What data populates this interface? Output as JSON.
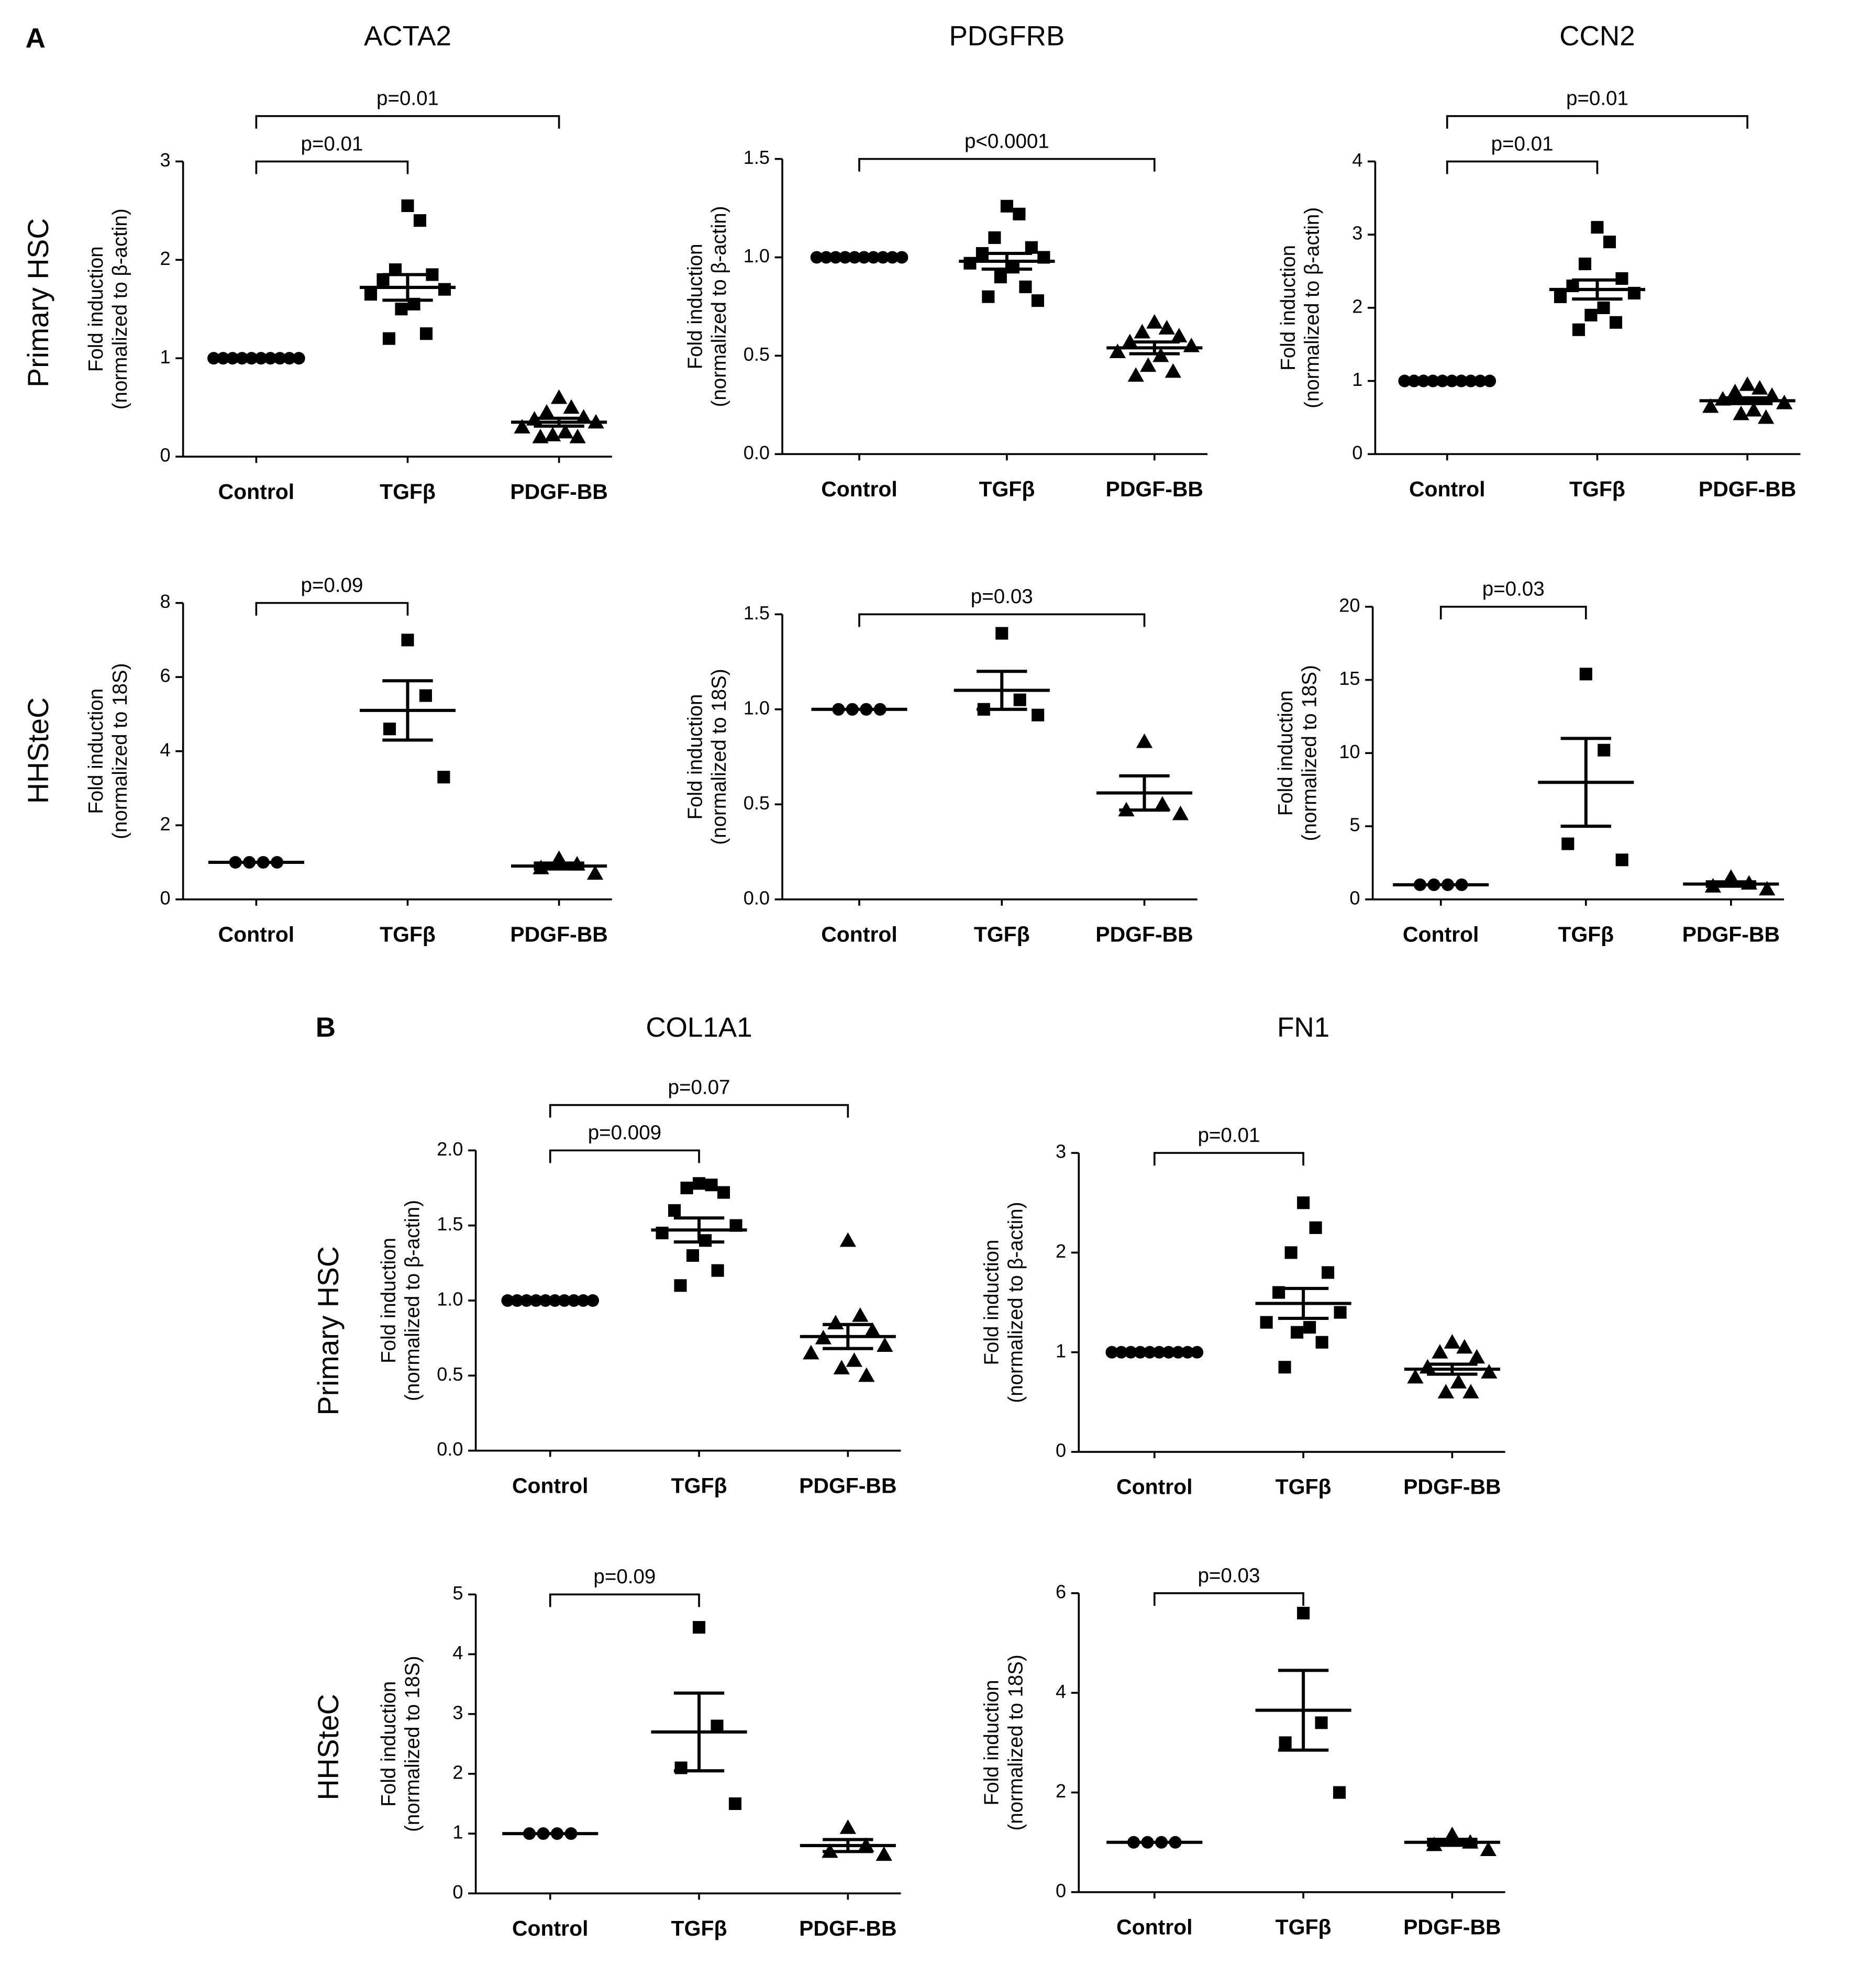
{
  "panels": [
    {
      "label": "A",
      "row_labels": [
        "Primary HSC",
        "HHSteC"
      ]
    },
    {
      "label": "B",
      "row_labels": [
        "Primary HSC",
        "HHSteC"
      ]
    }
  ],
  "chart_data": [
    {
      "type": "dotplot",
      "title": "ACTA2",
      "ylabel": [
        "Fold induction",
        "(normalized to β-actin)"
      ],
      "categories": [
        "Control",
        "TGFβ",
        "PDGF-BB"
      ],
      "markers": [
        "circle",
        "square",
        "triangle"
      ],
      "color": "#000000",
      "values": [
        [
          1,
          1,
          1,
          1,
          1,
          1,
          1,
          1,
          1,
          1
        ],
        [
          2.55,
          2.4,
          1.9,
          1.85,
          1.8,
          1.7,
          1.65,
          1.55,
          1.5,
          1.25,
          1.2
        ],
        [
          0.6,
          0.5,
          0.45,
          0.4,
          0.38,
          0.35,
          0.3,
          0.25,
          0.22,
          0.2,
          0.2
        ]
      ],
      "means": [
        1,
        1.72,
        0.35
      ],
      "sems": [
        0,
        0.13,
        0.04
      ],
      "ylim": [
        0,
        3
      ],
      "yticks": [
        0,
        1,
        2,
        3
      ],
      "brackets": [
        {
          "from": 0,
          "to": 1,
          "label": "p=0.01"
        },
        {
          "from": 0,
          "to": 2,
          "label": "p=0.01"
        }
      ]
    },
    {
      "type": "dotplot",
      "title": "PDGFRB",
      "ylabel": [
        "Fold induction",
        "(normalized to β-actin)"
      ],
      "categories": [
        "Control",
        "TGFβ",
        "PDGF-BB"
      ],
      "markers": [
        "circle",
        "square",
        "triangle"
      ],
      "color": "#000000",
      "values": [
        [
          1,
          1,
          1,
          1,
          1,
          1,
          1,
          1,
          1,
          1
        ],
        [
          1.26,
          1.22,
          1.1,
          1.05,
          1.02,
          1.0,
          0.97,
          0.95,
          0.9,
          0.85,
          0.8,
          0.78
        ],
        [
          0.67,
          0.64,
          0.62,
          0.6,
          0.57,
          0.55,
          0.52,
          0.5,
          0.45,
          0.42,
          0.4
        ]
      ],
      "means": [
        1,
        0.98,
        0.54
      ],
      "sems": [
        0,
        0.04,
        0.03
      ],
      "ylim": [
        0,
        1.5
      ],
      "yticks": [
        {
          "value": 0,
          "label": "0.0"
        },
        {
          "value": 0.5,
          "label": "0.5"
        },
        {
          "value": 1,
          "label": "1.0"
        },
        1.5
      ],
      "brackets": [
        {
          "from": 0,
          "to": 2,
          "label": "p<0.0001"
        }
      ]
    },
    {
      "type": "dotplot",
      "title": "CCN2",
      "ylabel": [
        "Fold induction",
        "(normalized to β-actin)"
      ],
      "categories": [
        "Control",
        "TGFβ",
        "PDGF-BB"
      ],
      "markers": [
        "circle",
        "square",
        "triangle"
      ],
      "color": "#000000",
      "values": [
        [
          1,
          1,
          1,
          1,
          1,
          1,
          1,
          1,
          1,
          1
        ],
        [
          3.1,
          2.9,
          2.6,
          2.4,
          2.3,
          2.2,
          2.15,
          2.0,
          1.9,
          1.8,
          1.7
        ],
        [
          0.95,
          0.9,
          0.85,
          0.8,
          0.75,
          0.7,
          0.65,
          0.6,
          0.55,
          0.5
        ]
      ],
      "means": [
        1,
        2.25,
        0.73
      ],
      "sems": [
        0,
        0.13,
        0.04
      ],
      "ylim": [
        0,
        4
      ],
      "yticks": [
        0,
        1,
        2,
        3,
        4
      ],
      "brackets": [
        {
          "from": 0,
          "to": 1,
          "label": "p=0.01"
        },
        {
          "from": 0,
          "to": 2,
          "label": "p=0.01"
        }
      ]
    },
    {
      "type": "dotplot",
      "ylabel": [
        "Fold induction",
        "(normalized to 18S)"
      ],
      "categories": [
        "Control",
        "TGFβ",
        "PDGF-BB"
      ],
      "markers": [
        "circle",
        "square",
        "triangle"
      ],
      "color": "#000000",
      "values": [
        [
          1,
          1,
          1,
          1
        ],
        [
          7.0,
          5.5,
          4.6,
          3.3
        ],
        [
          1.1,
          0.95,
          0.85,
          0.7
        ]
      ],
      "means": [
        1,
        5.1,
        0.9
      ],
      "sems": [
        0,
        0.8,
        0.08
      ],
      "ylim": [
        0,
        8
      ],
      "yticks": [
        0,
        2,
        4,
        6,
        8
      ],
      "brackets": [
        {
          "from": 0,
          "to": 1,
          "label": "p=0.09"
        }
      ]
    },
    {
      "type": "dotplot",
      "ylabel": [
        "Fold induction",
        "(normalized to 18S)"
      ],
      "categories": [
        "Control",
        "TGFβ",
        "PDGF-BB"
      ],
      "markers": [
        "circle",
        "square",
        "triangle"
      ],
      "color": "#000000",
      "values": [
        [
          1,
          1,
          1,
          1
        ],
        [
          1.4,
          1.05,
          1.0,
          0.97
        ],
        [
          0.83,
          0.5,
          0.47,
          0.45
        ]
      ],
      "means": [
        1,
        1.1,
        0.56
      ],
      "sems": [
        0,
        0.1,
        0.09
      ],
      "ylim": [
        0,
        1.5
      ],
      "yticks": [
        {
          "value": 0,
          "label": "0.0"
        },
        {
          "value": 0.5,
          "label": "0.5"
        },
        {
          "value": 1,
          "label": "1.0"
        },
        1.5
      ],
      "brackets": [
        {
          "from": 0,
          "to": 2,
          "label": "p=0.03"
        }
      ]
    },
    {
      "type": "dotplot",
      "ylabel": [
        "Fold induction",
        "(normalized to 18S)"
      ],
      "categories": [
        "Control",
        "TGFβ",
        "PDGF-BB"
      ],
      "markers": [
        "circle",
        "square",
        "triangle"
      ],
      "color": "#000000",
      "values": [
        [
          1,
          1,
          1,
          1
        ],
        [
          15.4,
          10.2,
          3.8,
          2.7
        ],
        [
          1.5,
          1.1,
          0.9,
          0.7
        ]
      ],
      "means": [
        1,
        8.0,
        1.05
      ],
      "sems": [
        0,
        3.0,
        0.15
      ],
      "ylim": [
        0,
        20
      ],
      "yticks": [
        0,
        5,
        10,
        15,
        20
      ],
      "brackets": [
        {
          "from": 0,
          "to": 1,
          "label": "p=0.03"
        }
      ]
    },
    {
      "type": "dotplot",
      "title": "COL1A1",
      "ylabel": [
        "Fold induction",
        "(normalized to β-actin)"
      ],
      "categories": [
        "Control",
        "TGFβ",
        "PDGF-BB"
      ],
      "markers": [
        "circle",
        "square",
        "triangle"
      ],
      "color": "#000000",
      "values": [
        [
          1,
          1,
          1,
          1,
          1,
          1,
          1,
          1,
          1,
          1
        ],
        [
          1.78,
          1.77,
          1.75,
          1.72,
          1.6,
          1.5,
          1.45,
          1.4,
          1.3,
          1.2,
          1.1
        ],
        [
          1.4,
          0.9,
          0.85,
          0.8,
          0.75,
          0.7,
          0.65,
          0.6,
          0.55,
          0.5
        ]
      ],
      "means": [
        1,
        1.47,
        0.76
      ],
      "sems": [
        0,
        0.08,
        0.08
      ],
      "ylim": [
        0,
        2
      ],
      "yticks": [
        {
          "value": 0,
          "label": "0.0"
        },
        {
          "value": 0.5,
          "label": "0.5"
        },
        {
          "value": 1,
          "label": "1.0"
        },
        1.5,
        {
          "value": 2,
          "label": "2.0"
        }
      ],
      "brackets": [
        {
          "from": 0,
          "to": 1,
          "label": "p=0.009"
        },
        {
          "from": 0,
          "to": 2,
          "label": "p=0.07"
        }
      ]
    },
    {
      "type": "dotplot",
      "title": "FN1",
      "ylabel": [
        "Fold induction",
        "(normalized to β-actin)"
      ],
      "categories": [
        "Control",
        "TGFβ",
        "PDGF-BB"
      ],
      "markers": [
        "circle",
        "square",
        "triangle"
      ],
      "color": "#000000",
      "values": [
        [
          1,
          1,
          1,
          1,
          1,
          1,
          1,
          1,
          1,
          1
        ],
        [
          2.5,
          2.25,
          2.0,
          1.8,
          1.6,
          1.4,
          1.3,
          1.25,
          1.2,
          1.1,
          0.85
        ],
        [
          1.1,
          1.05,
          1.0,
          0.95,
          0.85,
          0.8,
          0.75,
          0.7,
          0.6,
          0.6
        ]
      ],
      "means": [
        1,
        1.49,
        0.83
      ],
      "sems": [
        0,
        0.15,
        0.05
      ],
      "ylim": [
        0,
        3
      ],
      "yticks": [
        0,
        1,
        2,
        3
      ],
      "brackets": [
        {
          "from": 0,
          "to": 1,
          "label": "p=0.01"
        }
      ]
    },
    {
      "type": "dotplot",
      "ylabel": [
        "Fold induction",
        "(normalized to 18S)"
      ],
      "categories": [
        "Control",
        "TGFβ",
        "PDGF-BB"
      ],
      "markers": [
        "circle",
        "square",
        "triangle"
      ],
      "color": "#000000",
      "values": [
        [
          1,
          1,
          1,
          1
        ],
        [
          4.45,
          2.8,
          2.1,
          1.5
        ],
        [
          1.1,
          0.8,
          0.7,
          0.65
        ]
      ],
      "means": [
        1,
        2.7,
        0.8
      ],
      "sems": [
        0,
        0.65,
        0.1
      ],
      "ylim": [
        0,
        5
      ],
      "yticks": [
        0,
        1,
        2,
        3,
        4,
        5
      ],
      "brackets": [
        {
          "from": 0,
          "to": 1,
          "label": "p=0.09"
        }
      ]
    },
    {
      "type": "dotplot",
      "ylabel": [
        "Fold induction",
        "(normalized to 18S)"
      ],
      "categories": [
        "Control",
        "TGFβ",
        "PDGF-BB"
      ],
      "markers": [
        "circle",
        "square",
        "triangle"
      ],
      "color": "#000000",
      "values": [
        [
          1,
          1,
          1,
          1
        ],
        [
          5.6,
          3.4,
          3.0,
          2.0
        ],
        [
          1.15,
          1.0,
          0.95,
          0.85
        ]
      ],
      "means": [
        1,
        3.65,
        1.0
      ],
      "sems": [
        0,
        0.8,
        0.06
      ],
      "ylim": [
        0,
        6
      ],
      "yticks": [
        0,
        2,
        4,
        6
      ],
      "brackets": [
        {
          "from": 0,
          "to": 1,
          "label": "p=0.03"
        }
      ]
    }
  ]
}
